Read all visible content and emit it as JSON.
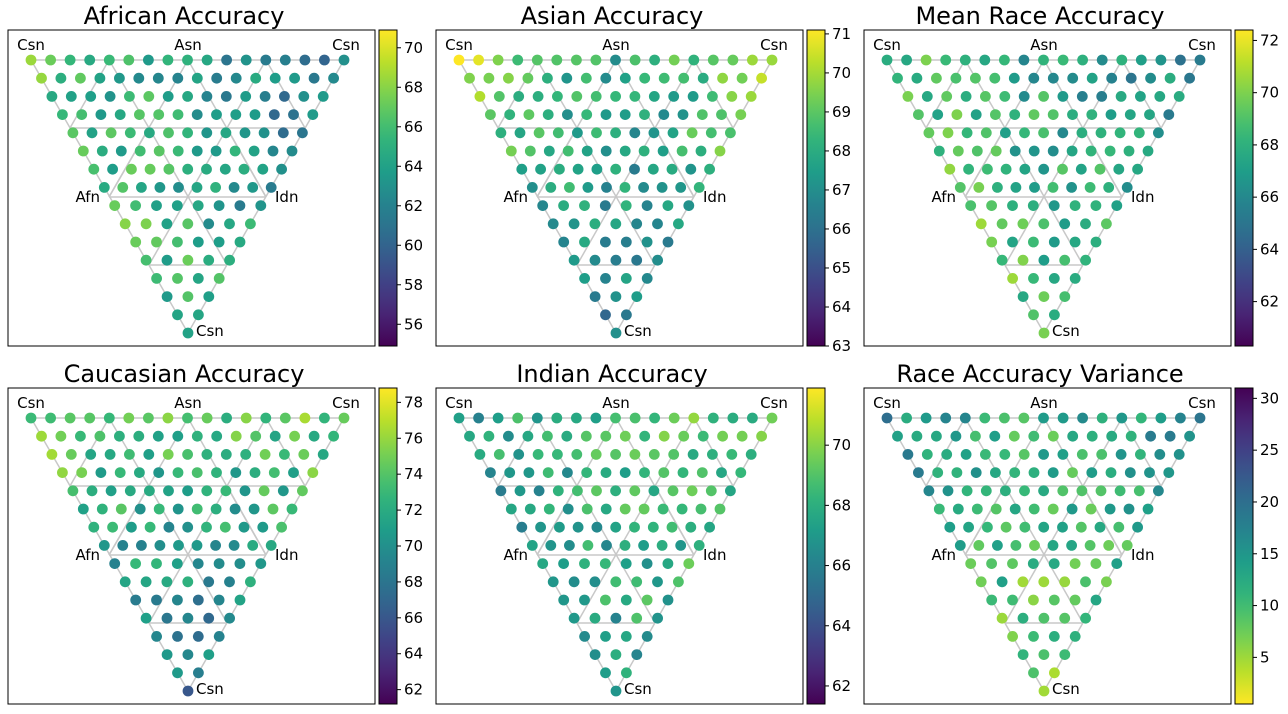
{
  "colormaps": {
    "viridis": [
      "#440154",
      "#482878",
      "#3e4989",
      "#31688e",
      "#26828e",
      "#1f9e89",
      "#35b779",
      "#6ece58",
      "#b5de2b",
      "#fde725"
    ]
  },
  "vertex_labels": {
    "top_left": "Csn",
    "top_center": "Asn",
    "top_right": "Csn",
    "mid_left": "Afn",
    "mid_right": "Idn",
    "bottom": "Csn"
  },
  "chart_data": [
    {
      "type": "scatter",
      "title": "African Accuracy",
      "colorbar": {
        "min": 54.9,
        "max": 70.9,
        "ticks": [
          56,
          58,
          60,
          62,
          64,
          66,
          68,
          70
        ],
        "reversed": false
      },
      "values": {
        "hi": 70,
        "lo": 55
      },
      "xlabel": "",
      "ylabel": ""
    },
    {
      "type": "scatter",
      "title": "Asian Accuracy",
      "colorbar": {
        "min": 63,
        "max": 71.1,
        "ticks": [
          63,
          64,
          65,
          66,
          67,
          68,
          69,
          70,
          71
        ],
        "reversed": false
      },
      "values": {
        "hi": 71,
        "lo": 63
      },
      "xlabel": "",
      "ylabel": ""
    },
    {
      "type": "scatter",
      "title": "Mean Race Accuracy",
      "colorbar": {
        "min": 60.3,
        "max": 72.4,
        "ticks": [
          62,
          64,
          66,
          68,
          70,
          72
        ],
        "reversed": false
      },
      "values": {
        "hi": 72,
        "lo": 60.5
      },
      "xlabel": "",
      "ylabel": ""
    },
    {
      "type": "scatter",
      "title": "Caucasian Accuracy",
      "colorbar": {
        "min": 61.2,
        "max": 78.8,
        "ticks": [
          62,
          64,
          66,
          68,
          70,
          72,
          74,
          76,
          78
        ],
        "reversed": false
      },
      "values": {
        "hi": 78.5,
        "lo": 61.5
      },
      "xlabel": "",
      "ylabel": ""
    },
    {
      "type": "scatter",
      "title": "Indian Accuracy",
      "colorbar": {
        "min": 61.4,
        "max": 71.9,
        "ticks": [
          62,
          64,
          66,
          68,
          70
        ],
        "reversed": false
      },
      "values": {
        "hi": 71.5,
        "lo": 61.5
      },
      "xlabel": "",
      "ylabel": ""
    },
    {
      "type": "scatter",
      "title": "Race Accuracy Variance",
      "colorbar": {
        "min": 0.5,
        "max": 31,
        "ticks": [
          5,
          10,
          15,
          20,
          25,
          30
        ],
        "reversed": true
      },
      "values": {
        "hi": 30,
        "lo": 1
      },
      "xlabel": "",
      "ylabel": ""
    }
  ]
}
